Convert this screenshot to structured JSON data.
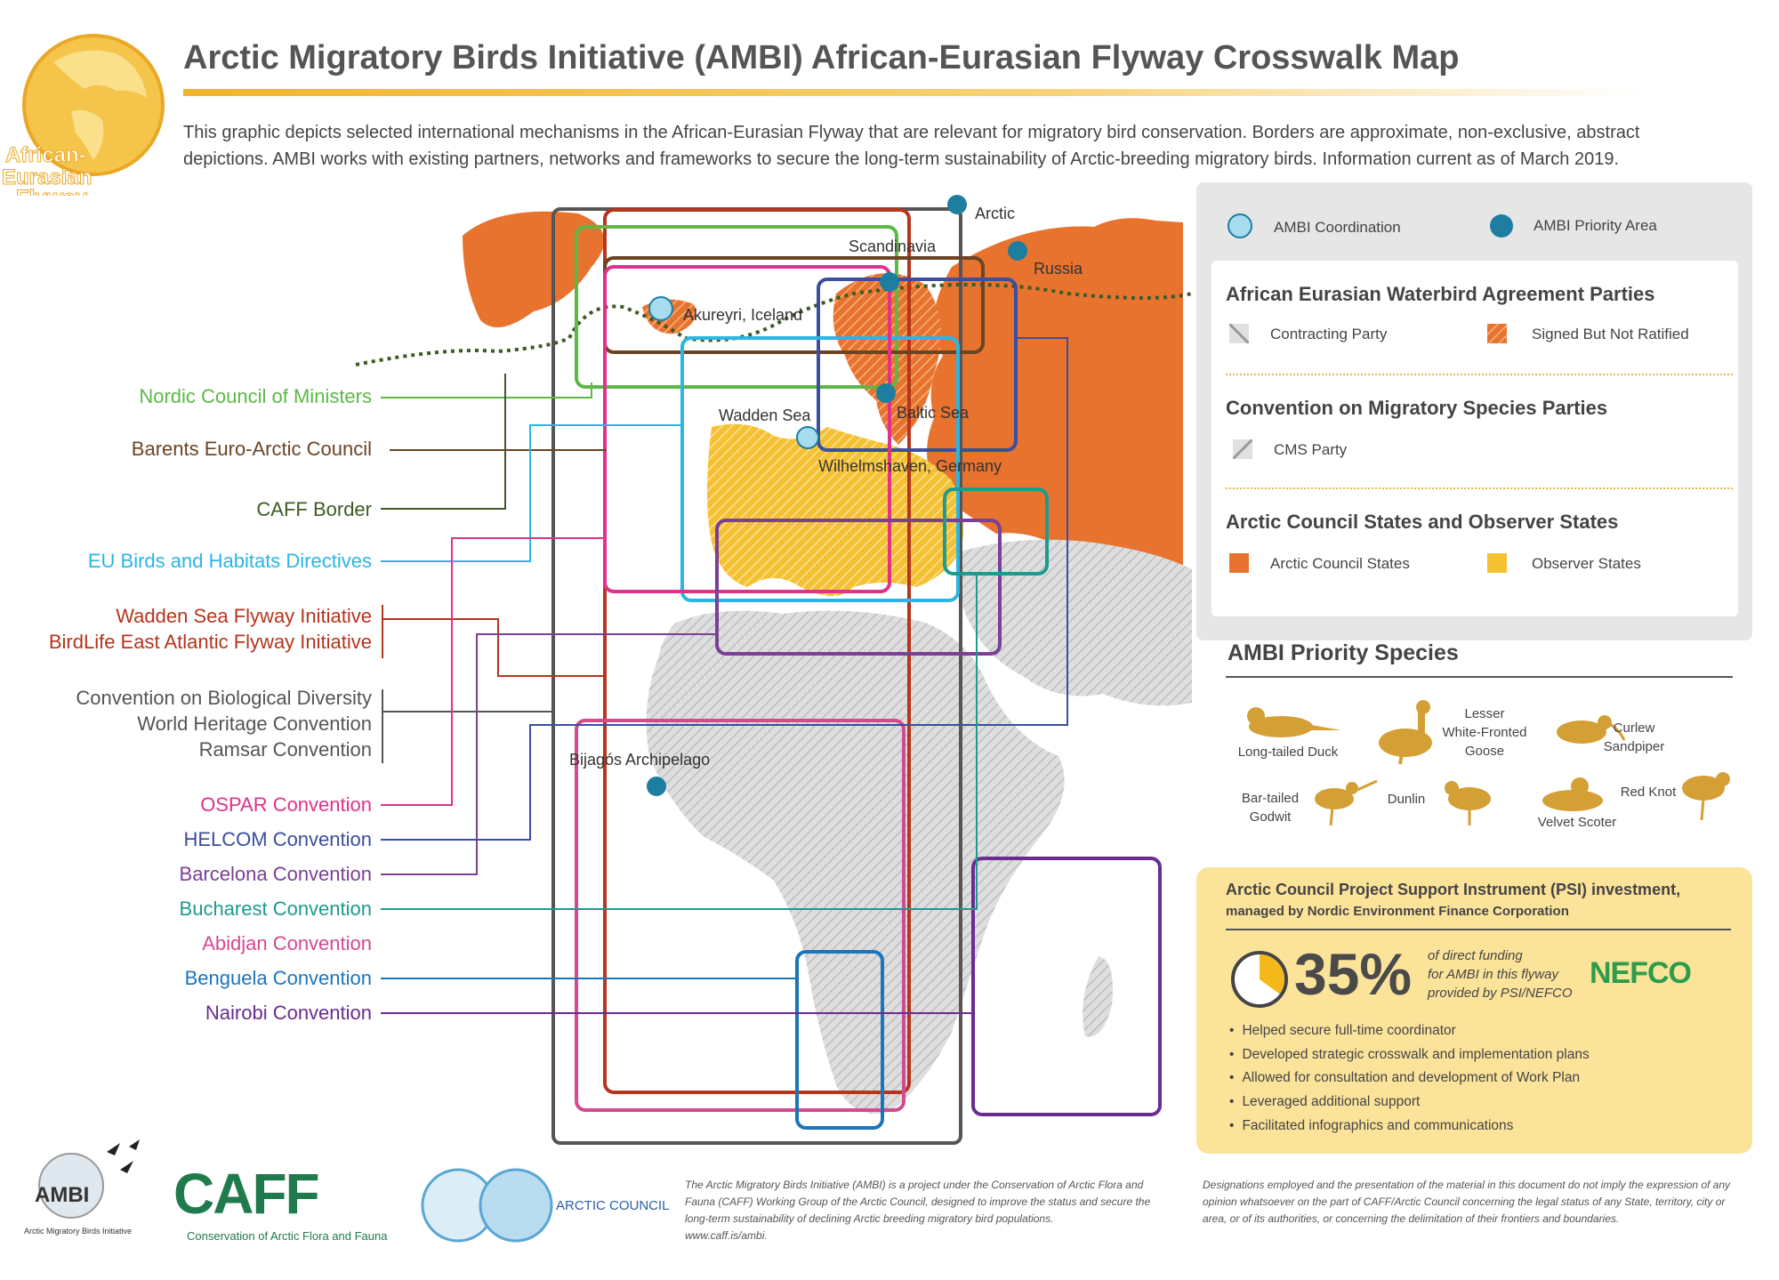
{
  "header": {
    "title": "Arctic Migratory Birds Initiative (AMBI) African-Eurasian Flyway Crosswalk Map",
    "intro": "This graphic depicts selected international mechanisms in the African-Eurasian Flyway that are relevant for migratory bird conservation. Borders are approximate, non-exclusive, abstract depictions. AMBI works with existing partners, networks and frameworks to secure the long-term sustainability of Arctic-breeding migratory birds. Information current as of March 2019.",
    "badge_line1": "African-",
    "badge_line2": "Eurasian",
    "badge_line3": "Flyway"
  },
  "mechanisms": [
    {
      "label": "Nordic Council of Ministers",
      "color": "#5cb946"
    },
    {
      "label": "Barents Euro-Arctic Council",
      "color": "#6b4423"
    },
    {
      "label": "CAFF Border",
      "color": "#3f5a24"
    },
    {
      "label": "EU Birds and Habitats Directives",
      "color": "#29b6e4"
    },
    {
      "label": "Wadden Sea Flyway Initiative",
      "color": "#b5351d"
    },
    {
      "label": "BirdLife East Atlantic Flyway Initiative",
      "color": "#b5351d"
    },
    {
      "label": "Convention on Biological Diversity",
      "color": "#555555"
    },
    {
      "label": "World Heritage Convention",
      "color": "#555555"
    },
    {
      "label": "Ramsar Convention",
      "color": "#555555"
    },
    {
      "label": "OSPAR Convention",
      "color": "#e0318c"
    },
    {
      "label": "HELCOM Convention",
      "color": "#3b4ea0"
    },
    {
      "label": "Barcelona Convention",
      "color": "#7b3f96"
    },
    {
      "label": "Bucharest Convention",
      "color": "#1e9a8f"
    },
    {
      "label": "Abidjan Convention",
      "color": "#d24a8f"
    },
    {
      "label": "Benguela Convention",
      "color": "#1b75bb"
    },
    {
      "label": "Nairobi Convention",
      "color": "#6a2c91"
    }
  ],
  "places": {
    "arctic": "Arctic",
    "russia": "Russia",
    "scandinavia": "Scandinavia",
    "akureyri": "Akureyri, Iceland",
    "wadden": "Wadden Sea",
    "baltic": "Baltic Sea",
    "wilhelmshaven": "Wilhelmshaven, Germany",
    "bijagos": "Bijagós Archipelago"
  },
  "legend": {
    "coordination": "AMBI Coordination",
    "priority_area": "AMBI Priority Area",
    "aewa_head": "African Eurasian Waterbird Agreement Parties",
    "contracting": "Contracting Party",
    "signed": "Signed But Not Ratified",
    "cms_head": "Convention on Migratory Species Parties",
    "cms_party": "CMS Party",
    "ac_head": "Arctic Council States and Observer States",
    "ac_states": "Arctic Council States",
    "observer_states": "Observer States"
  },
  "species": {
    "heading": "AMBI Priority Species",
    "long_tailed_duck": "Long-tailed Duck",
    "lwfg_1": "Lesser",
    "lwfg_2": "White-Fronted",
    "lwfg_3": "Goose",
    "curlew_1": "Curlew",
    "curlew_2": "Sandpiper",
    "godwit_1": "Bar-tailed",
    "godwit_2": "Godwit",
    "dunlin": "Dunlin",
    "velvet_scoter": "Velvet Scoter",
    "red_knot": "Red Knot"
  },
  "psi": {
    "title": "Arctic Council Project Support Instrument (PSI) investment,",
    "subtitle": "managed by Nordic Environment Finance Corporation",
    "percent": "35%",
    "percent_value": 0.35,
    "note_1": "of direct funding",
    "note_2": "for AMBI in this flyway",
    "note_3": "provided by PSI/NEFCO",
    "nefco": "NEFCO",
    "bullets": [
      "Helped secure full-time coordinator",
      "Developed strategic crosswalk and implementation plans",
      "Allowed for consultation and development of Work Plan",
      "Leveraged additional support",
      "Facilitated infographics and communications"
    ]
  },
  "footer": {
    "ambi_logo": "AMBI",
    "ambi_sub": "Arctic Migratory Birds Initiative",
    "caff_logo": "CAFF",
    "caff_sub": "Conservation of Arctic Flora and Fauna",
    "arctic_council": "ARCTIC COUNCIL",
    "about": "The Arctic Migratory Birds Initiative (AMBI) is a project under the Conservation of Arctic Flora and Fauna (CAFF) Working Group of the Arctic Council, designed to improve the status and secure the long-term sustainability of declining Arctic breeding migratory bird populations.",
    "link": "www.caff.is/ambi.",
    "disclaimer": "Designations employed and the presentation of the material in this document do not imply the expression of any opinion whatsoever on the part of CAFF/Arctic Council concerning the legal status of any State, territory, city or area, or of its authorities, or concerning the delimitation of their frontiers and boundaries."
  },
  "colors": {
    "arctic_orange": "#e8732e",
    "observer_yellow": "#f5c132",
    "gold": "#d4a035",
    "priority_blue": "#1d7ea0",
    "coordination_blue": "#a7dcef",
    "map_gray": "#d9d9d9"
  }
}
